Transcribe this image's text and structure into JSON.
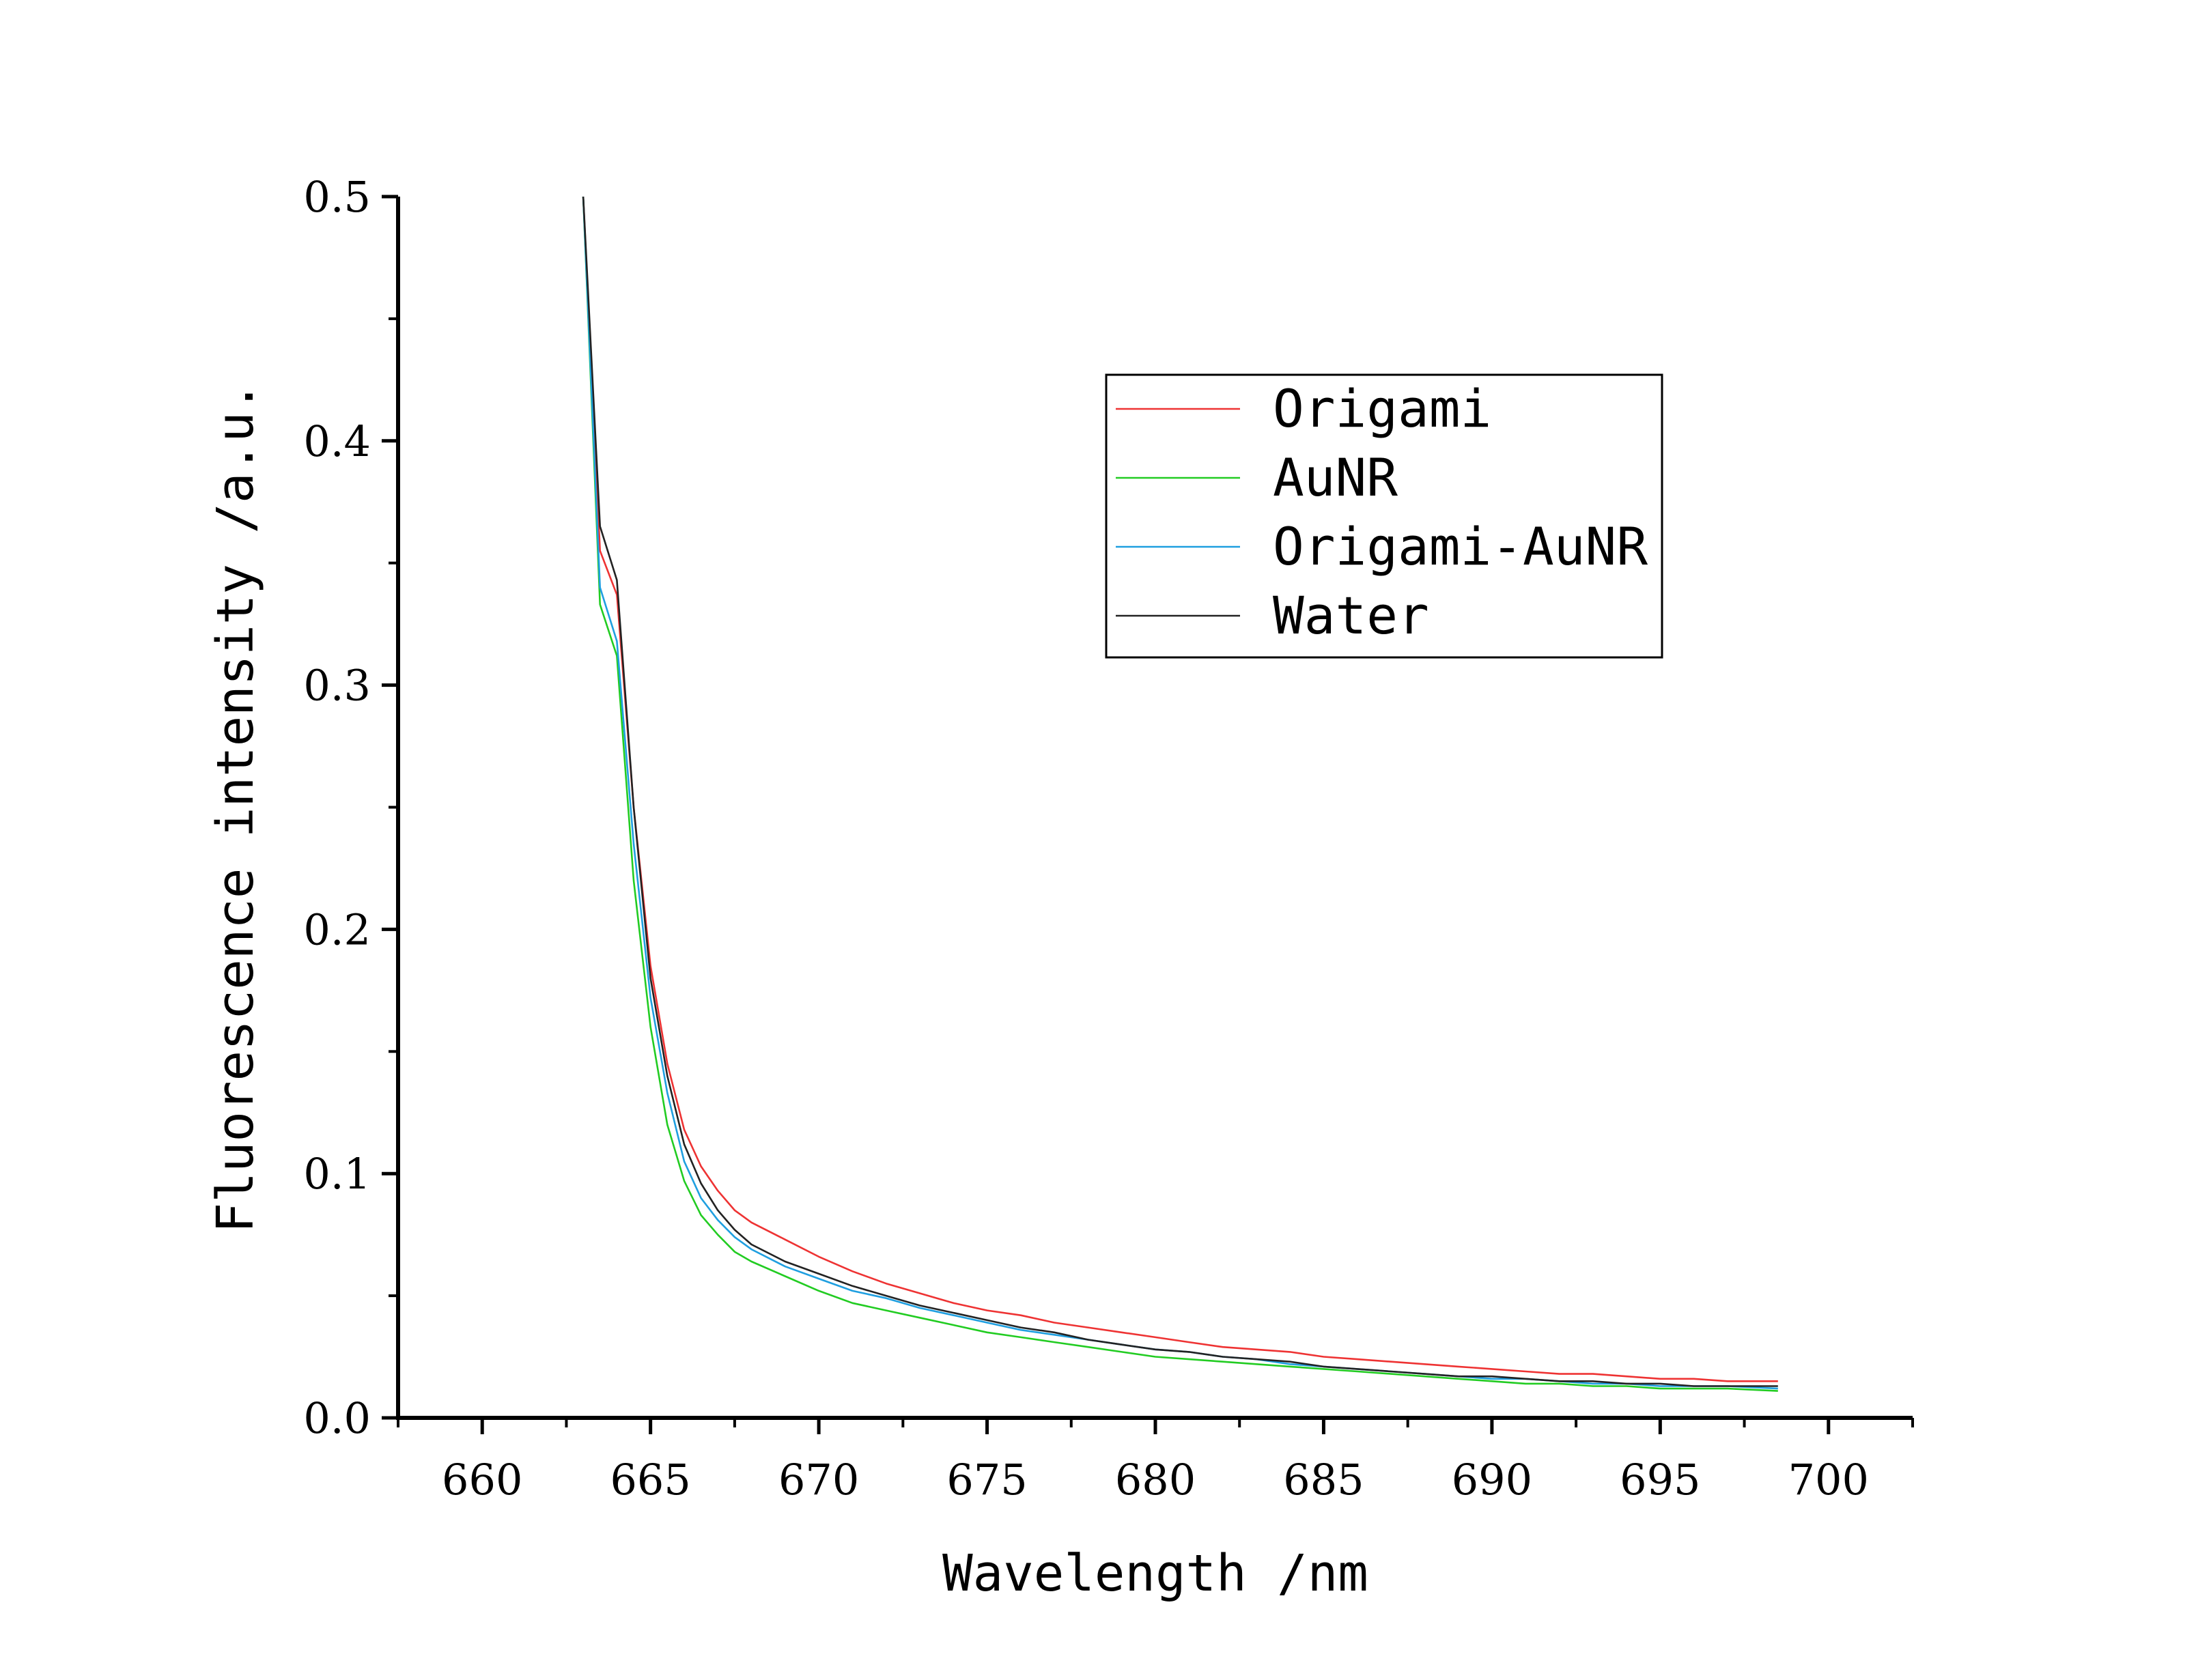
{
  "chart_data": {
    "type": "line",
    "title": "",
    "xlabel": "Wavelength /nm",
    "ylabel": "Fluorescence intensity /a.u.",
    "xlim": [
      657.5,
      702.5
    ],
    "ylim": [
      0,
      0.5
    ],
    "x_ticks": [
      "660",
      "665",
      "670",
      "675",
      "680",
      "685",
      "690",
      "695",
      "700"
    ],
    "y_ticks": [
      "0.0",
      "0.1",
      "0.2",
      "0.3",
      "0.4",
      "0.5"
    ],
    "grid": false,
    "legend_position": "top-right",
    "x": [
      663.0,
      663.5,
      664.0,
      664.5,
      665.0,
      665.5,
      666.0,
      666.5,
      667.0,
      667.5,
      668.0,
      669.0,
      670.0,
      671.0,
      672.0,
      673.0,
      674.0,
      675.0,
      676.0,
      677.0,
      678.0,
      679.0,
      680.0,
      681.0,
      682.0,
      683.0,
      684.0,
      685.0,
      686.0,
      687.0,
      688.0,
      689.0,
      690.0,
      691.0,
      692.0,
      693.0,
      694.0,
      695.0,
      696.0,
      697.0,
      698.5
    ],
    "series": [
      {
        "name": "Origami",
        "color": "#ee3333",
        "values": [
          0.5,
          0.355,
          0.337,
          0.25,
          0.185,
          0.145,
          0.118,
          0.103,
          0.093,
          0.085,
          0.08,
          0.073,
          0.066,
          0.06,
          0.055,
          0.051,
          0.047,
          0.044,
          0.042,
          0.039,
          0.037,
          0.035,
          0.033,
          0.031,
          0.029,
          0.028,
          0.027,
          0.025,
          0.024,
          0.023,
          0.022,
          0.021,
          0.02,
          0.019,
          0.018,
          0.018,
          0.017,
          0.016,
          0.016,
          0.015,
          0.015
        ]
      },
      {
        "name": "AuNR",
        "color": "#22cc22",
        "values": [
          0.5,
          0.333,
          0.312,
          0.22,
          0.16,
          0.12,
          0.097,
          0.083,
          0.075,
          0.068,
          0.064,
          0.058,
          0.052,
          0.047,
          0.044,
          0.041,
          0.038,
          0.035,
          0.033,
          0.031,
          0.029,
          0.027,
          0.025,
          0.024,
          0.023,
          0.022,
          0.021,
          0.02,
          0.019,
          0.018,
          0.017,
          0.016,
          0.015,
          0.014,
          0.014,
          0.013,
          0.013,
          0.012,
          0.012,
          0.012,
          0.011
        ]
      },
      {
        "name": "Origami-AuNR",
        "color": "#1f9fe0",
        "values": [
          0.5,
          0.34,
          0.318,
          0.235,
          0.172,
          0.133,
          0.105,
          0.09,
          0.081,
          0.074,
          0.069,
          0.062,
          0.057,
          0.052,
          0.049,
          0.045,
          0.042,
          0.039,
          0.036,
          0.034,
          0.032,
          0.03,
          0.028,
          0.027,
          0.025,
          0.024,
          0.022,
          0.021,
          0.02,
          0.019,
          0.018,
          0.017,
          0.016,
          0.016,
          0.015,
          0.014,
          0.014,
          0.013,
          0.013,
          0.013,
          0.012
        ]
      },
      {
        "name": "Water",
        "color": "#222222",
        "values": [
          0.5,
          0.365,
          0.343,
          0.25,
          0.18,
          0.14,
          0.112,
          0.096,
          0.085,
          0.077,
          0.071,
          0.064,
          0.059,
          0.054,
          0.05,
          0.046,
          0.043,
          0.04,
          0.037,
          0.035,
          0.032,
          0.03,
          0.028,
          0.027,
          0.025,
          0.024,
          0.023,
          0.021,
          0.02,
          0.019,
          0.018,
          0.017,
          0.017,
          0.016,
          0.015,
          0.015,
          0.014,
          0.014,
          0.013,
          0.013,
          0.013
        ]
      }
    ]
  }
}
